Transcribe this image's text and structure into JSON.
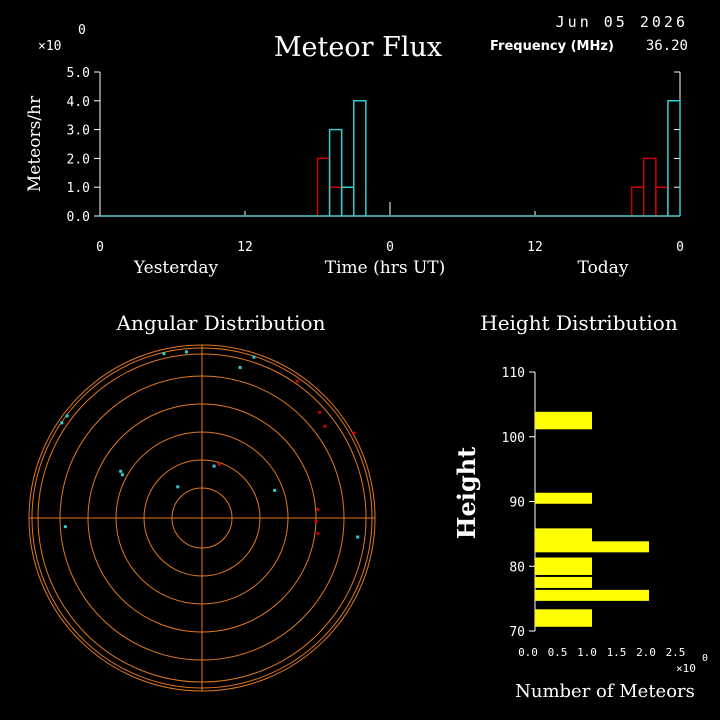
{
  "header": {
    "date": "Jun 05 2026",
    "title": "Meteor Flux",
    "frequency_label": "Frequency (MHz)",
    "frequency_value": "36.20",
    "exponent_label": "×10",
    "exponent_value": "0"
  },
  "colors": {
    "background": "#000000",
    "axis": "#ffffff",
    "series_red": "#cc0000",
    "series_cyan": "#33cccc",
    "polar_rings": "#e07820",
    "height_bars": "#ffff00"
  },
  "chart_data": [
    {
      "type": "bar",
      "title": "Meteor Flux",
      "ylabel": "Meteors/hr",
      "xlabel": "Time (hrs UT)",
      "y_multiplier_label": "×10",
      "y_multiplier_exponent": "0",
      "ylim": [
        0,
        5
      ],
      "yticks": [
        "0.0",
        "1.0",
        "2.0",
        "3.0",
        "4.0",
        "5.0"
      ],
      "xlim": [
        0,
        48
      ],
      "xticks": [
        {
          "x": 0,
          "label": "0"
        },
        {
          "x": 12,
          "label": "12"
        },
        {
          "x": 24,
          "label": "0"
        },
        {
          "x": 36,
          "label": "12"
        },
        {
          "x": 48,
          "label": "0"
        }
      ],
      "day_labels": [
        "Yesterday",
        "Today"
      ],
      "series": [
        {
          "color": "#cc0000",
          "points": [
            {
              "x": 19,
              "y": 2
            },
            {
              "x": 20,
              "y": 1
            },
            {
              "x": 45,
              "y": 1
            },
            {
              "x": 46,
              "y": 2
            },
            {
              "x": 47,
              "y": 1
            }
          ]
        },
        {
          "color": "#33cccc",
          "points": [
            {
              "x": 20,
              "y": 3
            },
            {
              "x": 21,
              "y": 1
            },
            {
              "x": 22,
              "y": 4
            },
            {
              "x": 48,
              "y": 4
            }
          ]
        }
      ]
    },
    {
      "type": "scatter",
      "title": "Angular Distribution",
      "coordinates": "polar",
      "rings": 6,
      "points": [
        {
          "x": -0.22,
          "y": 0.95,
          "color": "#33cccc"
        },
        {
          "x": -0.09,
          "y": 0.96,
          "color": "#33cccc"
        },
        {
          "x": 0.3,
          "y": 0.93,
          "color": "#33cccc"
        },
        {
          "x": 0.22,
          "y": 0.87,
          "color": "#33cccc"
        },
        {
          "x": 0.55,
          "y": 0.79,
          "color": "#cc0000"
        },
        {
          "x": 0.68,
          "y": 0.61,
          "color": "#cc0000"
        },
        {
          "x": 0.71,
          "y": 0.53,
          "color": "#cc0000"
        },
        {
          "x": 0.88,
          "y": 0.49,
          "color": "#cc0000"
        },
        {
          "x": -0.78,
          "y": 0.59,
          "color": "#33cccc"
        },
        {
          "x": -0.81,
          "y": 0.55,
          "color": "#33cccc"
        },
        {
          "x": -0.47,
          "y": 0.27,
          "color": "#33cccc"
        },
        {
          "x": -0.46,
          "y": 0.25,
          "color": "#33cccc"
        },
        {
          "x": 0.1,
          "y": 0.31,
          "color": "#cc0000"
        },
        {
          "x": 0.07,
          "y": 0.3,
          "color": "#33cccc"
        },
        {
          "x": -0.14,
          "y": 0.18,
          "color": "#33cccc"
        },
        {
          "x": 0.42,
          "y": 0.16,
          "color": "#33cccc"
        },
        {
          "x": 0.67,
          "y": 0.05,
          "color": "#cc0000"
        },
        {
          "x": 0.66,
          "y": -0.02,
          "color": "#cc0000"
        },
        {
          "x": 0.67,
          "y": -0.09,
          "color": "#cc0000"
        },
        {
          "x": 0.9,
          "y": -0.11,
          "color": "#33cccc"
        },
        {
          "x": -0.79,
          "y": -0.05,
          "color": "#33cccc"
        }
      ]
    },
    {
      "type": "bar",
      "orientation": "horizontal",
      "title": "Height Distribution",
      "ylabel": "Height",
      "xlabel": "Number of Meteors",
      "x_multiplier_label": "×10",
      "x_multiplier_exponent": "0",
      "xlim": [
        0,
        2.5
      ],
      "xticks": [
        "0.0",
        "0.5",
        "1.0",
        "1.5",
        "2.0",
        "2.5"
      ],
      "ylim": [
        70,
        110
      ],
      "yticks": [
        "70",
        "80",
        "90",
        "100",
        "110"
      ],
      "bars": [
        {
          "height": 103,
          "value": 1
        },
        {
          "height": 102,
          "value": 1
        },
        {
          "height": 90.5,
          "value": 1
        },
        {
          "height": 85,
          "value": 1
        },
        {
          "height": 84,
          "value": 1
        },
        {
          "height": 83,
          "value": 2
        },
        {
          "height": 80.5,
          "value": 1
        },
        {
          "height": 79.5,
          "value": 1
        },
        {
          "height": 77.5,
          "value": 1
        },
        {
          "height": 75.5,
          "value": 2
        },
        {
          "height": 72.5,
          "value": 1
        },
        {
          "height": 71.5,
          "value": 1
        }
      ]
    }
  ]
}
